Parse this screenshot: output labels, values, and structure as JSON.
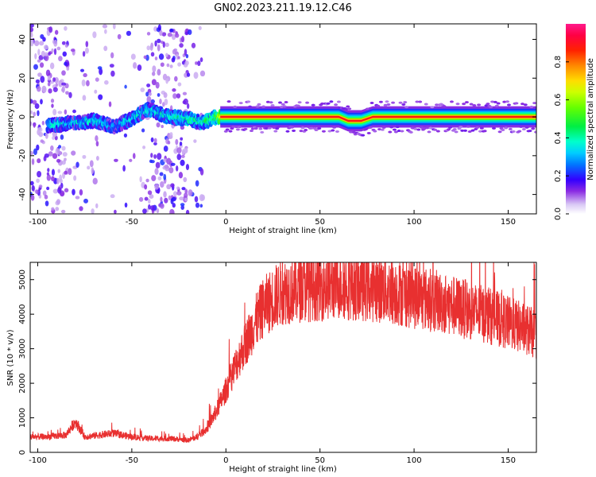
{
  "title": "GN02.2023.211.19.12.C46",
  "chart_data": [
    {
      "type": "heatmap",
      "xlabel": "Height of straight line (km)",
      "ylabel": "Frequency (Hz)",
      "xlim": [
        -104,
        165
      ],
      "ylim": [
        -50,
        48
      ],
      "xticks": [
        -100,
        -50,
        0,
        50,
        100,
        150
      ],
      "yticks": [
        -40,
        -20,
        0,
        20,
        40
      ],
      "grid": false,
      "colorbar": {
        "label": "Normalized spectral amplitude",
        "range": [
          0.0,
          1.0
        ],
        "ticks": [
          "0.0",
          "0.2",
          "0.4",
          "0.6",
          "0.8"
        ]
      },
      "ridge": [
        {
          "x": -90,
          "y": -4,
          "amp": 0.45
        },
        {
          "x": -80,
          "y": -3,
          "amp": 0.42
        },
        {
          "x": -70,
          "y": -2,
          "amp": 0.45
        },
        {
          "x": -60,
          "y": -5,
          "amp": 0.4
        },
        {
          "x": -50,
          "y": -1,
          "amp": 0.45
        },
        {
          "x": -42,
          "y": 4,
          "amp": 0.45
        },
        {
          "x": -30,
          "y": 0,
          "amp": 0.45
        },
        {
          "x": -20,
          "y": -1,
          "amp": 0.5
        },
        {
          "x": -13,
          "y": -3,
          "amp": 0.5
        },
        {
          "x": -5,
          "y": 0,
          "amp": 0.6
        },
        {
          "x": 0,
          "y": 0,
          "amp": 0.9
        },
        {
          "x": 60,
          "y": 0,
          "amp": 0.9
        },
        {
          "x": 65,
          "y": -2,
          "amp": 0.7
        },
        {
          "x": 72,
          "y": -2,
          "amp": 0.7
        },
        {
          "x": 78,
          "y": 0,
          "amp": 0.85
        },
        {
          "x": 165,
          "y": 0,
          "amp": 0.85
        }
      ]
    },
    {
      "type": "line",
      "xlabel": "Height of straight line (km)",
      "ylabel": "SNR (10 * v/v)",
      "xlim": [
        -104,
        165
      ],
      "ylim": [
        0,
        5500
      ],
      "xticks": [
        -100,
        -50,
        0,
        50,
        100,
        150
      ],
      "yticks": [
        0,
        1000,
        2000,
        3000,
        4000,
        5000
      ],
      "grid": false,
      "series": [
        {
          "color": "#e83030",
          "x": [
            -104,
            -95,
            -85,
            -80,
            -75,
            -60,
            -50,
            -40,
            -30,
            -25,
            -20,
            -15,
            -10,
            -5,
            0,
            5,
            10,
            15,
            20,
            25,
            30,
            40,
            50,
            60,
            70,
            80,
            90,
            100,
            110,
            120,
            130,
            140,
            150,
            160,
            165
          ],
          "values": [
            450,
            450,
            500,
            900,
            450,
            550,
            450,
            400,
            400,
            380,
            350,
            450,
            700,
            1200,
            1800,
            2500,
            3100,
            3700,
            4200,
            4450,
            4650,
            4750,
            4800,
            4850,
            4800,
            4750,
            4650,
            4500,
            4400,
            4250,
            4100,
            3950,
            3750,
            3550,
            3400
          ]
        }
      ]
    }
  ]
}
